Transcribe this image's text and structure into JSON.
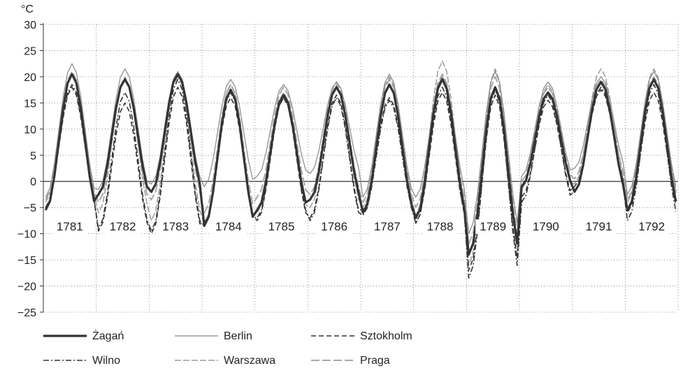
{
  "chart_data": {
    "type": "line",
    "title": "",
    "xlabel": "",
    "ylabel": "°C",
    "ylim": [
      -25,
      30
    ],
    "yticks": [
      30,
      25,
      20,
      15,
      10,
      5,
      0,
      -5,
      -10,
      -15,
      -20,
      -25
    ],
    "ytick_labels": [
      "30",
      "25",
      "20",
      "15",
      "10",
      "5",
      "0",
      "−5",
      "−10",
      "−15",
      "−20",
      "−25"
    ],
    "years": [
      "1781",
      "1782",
      "1783",
      "1784",
      "1785",
      "1786",
      "1787",
      "1788",
      "1789",
      "1790",
      "1791",
      "1792"
    ],
    "months_per_year": 12,
    "grid": true,
    "legend_position": "bottom",
    "series": [
      {
        "name": "Żagań",
        "style": "thick-solid",
        "color": "#333333",
        "minmax": [
          [
            -5.5,
            20.5
          ],
          [
            -2.5,
            19.5
          ],
          [
            -2.0,
            20.5
          ],
          [
            -8.5,
            17.5
          ],
          [
            -5.5,
            16.5
          ],
          [
            -3.5,
            18.0
          ],
          [
            -6.0,
            18.5
          ],
          [
            -7.0,
            19.5
          ],
          [
            -14.0,
            18.0
          ],
          [
            -1.0,
            17.0
          ],
          [
            -2.0,
            19.0
          ],
          [
            -5.5,
            19.5
          ]
        ]
      },
      {
        "name": "Berlin",
        "style": "thin-solid",
        "color": "#888888",
        "minmax": [
          [
            -3.0,
            22.5
          ],
          [
            -1.5,
            21.5
          ],
          [
            -0.5,
            21.0
          ],
          [
            -1.0,
            19.5
          ],
          [
            1.0,
            18.5
          ],
          [
            1.5,
            19.0
          ],
          [
            -3.0,
            20.5
          ],
          [
            -3.0,
            20.0
          ],
          [
            -10.0,
            21.0
          ],
          [
            1.0,
            19.0
          ],
          [
            2.5,
            20.0
          ],
          [
            -2.5,
            21.0
          ]
        ]
      },
      {
        "name": "Sztokholm",
        "style": "dashed",
        "color": "#333333",
        "minmax": [
          [
            -5.0,
            18.0
          ],
          [
            -9.5,
            15.0
          ],
          [
            -10.0,
            18.0
          ],
          [
            -8.0,
            16.0
          ],
          [
            -7.5,
            16.0
          ],
          [
            -7.0,
            16.5
          ],
          [
            -5.5,
            16.0
          ],
          [
            -8.0,
            17.0
          ],
          [
            -17.0,
            16.5
          ],
          [
            -3.0,
            15.5
          ],
          [
            -1.0,
            17.5
          ],
          [
            -6.0,
            17.0
          ]
        ]
      },
      {
        "name": "Wilno",
        "style": "dash-dot",
        "color": "#333333",
        "minmax": [
          [
            -5.0,
            18.5
          ],
          [
            -9.0,
            17.0
          ],
          [
            -9.5,
            19.5
          ],
          [
            -8.5,
            17.0
          ],
          [
            -7.0,
            16.0
          ],
          [
            -7.5,
            16.0
          ],
          [
            -6.5,
            15.5
          ],
          [
            -8.0,
            18.0
          ],
          [
            -18.5,
            17.5
          ],
          [
            -4.0,
            16.5
          ],
          [
            -2.0,
            18.0
          ],
          [
            -7.5,
            18.5
          ]
        ]
      },
      {
        "name": "Warszawa",
        "style": "light-dashed",
        "color": "#9a9a9a",
        "minmax": [
          [
            -4.0,
            20.5
          ],
          [
            -6.0,
            20.0
          ],
          [
            -7.5,
            20.5
          ],
          [
            -8.0,
            18.5
          ],
          [
            -6.0,
            17.0
          ],
          [
            -5.0,
            18.5
          ],
          [
            -5.0,
            20.0
          ],
          [
            -6.5,
            23.0
          ],
          [
            -16.0,
            21.5
          ],
          [
            -1.5,
            18.5
          ],
          [
            -0.5,
            21.5
          ],
          [
            -4.0,
            21.5
          ]
        ]
      },
      {
        "name": "Praga",
        "style": "light-long-dashed",
        "color": "#a8a8a8",
        "minmax": [
          [
            -3.5,
            21.0
          ],
          [
            -4.0,
            19.5
          ],
          [
            -3.5,
            20.0
          ],
          [
            -6.0,
            18.5
          ],
          [
            -3.0,
            18.0
          ],
          [
            -2.5,
            19.0
          ],
          [
            -4.0,
            19.5
          ],
          [
            -5.0,
            20.5
          ],
          [
            -12.0,
            20.0
          ],
          [
            0.0,
            18.0
          ],
          [
            0.5,
            19.5
          ],
          [
            -3.5,
            20.0
          ]
        ]
      }
    ]
  }
}
